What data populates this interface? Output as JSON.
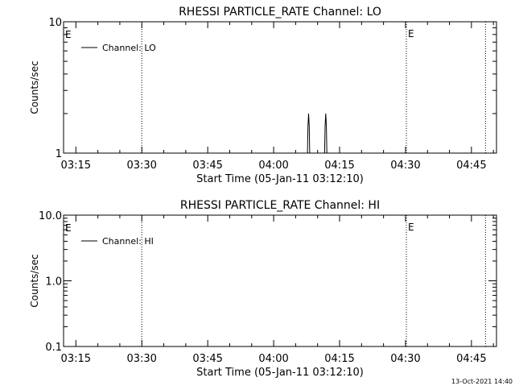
{
  "footer": {
    "timestamp": "13-Oct-2021 14:40"
  },
  "chart_data": [
    {
      "type": "line",
      "title": "RHESSI PARTICLE_RATE Channel: LO",
      "xlabel": "Start Time (05-Jan-11 03:12:10)",
      "ylabel": "Counts/sec",
      "x_unit": "minutes after 03:12:10",
      "xlim": [
        0,
        98.5
      ],
      "ylim": [
        1,
        10
      ],
      "y_scale": "log",
      "y_tick_values": [
        1,
        10
      ],
      "y_tick_labels": [
        "1",
        "10"
      ],
      "x_tick_values": [
        2.8,
        17.8,
        32.8,
        47.8,
        62.8,
        77.8,
        92.8
      ],
      "x_tick_labels": [
        "03:15",
        "03:30",
        "03:45",
        "04:00",
        "04:15",
        "04:30",
        "04:45"
      ],
      "grid": false,
      "legend_position": "top-left",
      "vlines": [
        {
          "x": 17.8,
          "label": ""
        },
        {
          "x": 78,
          "label": "E"
        },
        {
          "x": 96,
          "label": ""
        }
      ],
      "edge_markers": [
        {
          "label": "E",
          "position": "left"
        }
      ],
      "series": [
        {
          "name": "Channel: LO",
          "color": "#000000",
          "x": [
            55.5,
            55.6,
            55.75,
            55.9,
            56.0,
            59.4,
            59.5,
            59.65,
            59.8,
            59.9
          ],
          "values": [
            1,
            1.6,
            2,
            1.6,
            1,
            1,
            1.6,
            2,
            1.6,
            1
          ]
        }
      ]
    },
    {
      "type": "line",
      "title": "RHESSI PARTICLE_RATE Channel: HI",
      "xlabel": "Start Time (05-Jan-11 03:12:10)",
      "ylabel": "Counts/sec",
      "x_unit": "minutes after 03:12:10",
      "xlim": [
        0,
        98.5
      ],
      "ylim": [
        0.1,
        10
      ],
      "y_scale": "log",
      "y_tick_values": [
        0.1,
        1,
        10
      ],
      "y_tick_labels": [
        "0.1",
        "1.0",
        "10.0"
      ],
      "x_tick_values": [
        2.8,
        17.8,
        32.8,
        47.8,
        62.8,
        77.8,
        92.8
      ],
      "x_tick_labels": [
        "03:15",
        "03:30",
        "03:45",
        "04:00",
        "04:15",
        "04:30",
        "04:45"
      ],
      "grid": false,
      "legend_position": "top-left",
      "vlines": [
        {
          "x": 17.8,
          "label": ""
        },
        {
          "x": 78,
          "label": "E"
        },
        {
          "x": 96,
          "label": ""
        }
      ],
      "edge_markers": [
        {
          "label": "E",
          "position": "left"
        }
      ],
      "series": [
        {
          "name": "Channel: HI",
          "color": "#000000",
          "x": [],
          "values": []
        }
      ]
    }
  ]
}
